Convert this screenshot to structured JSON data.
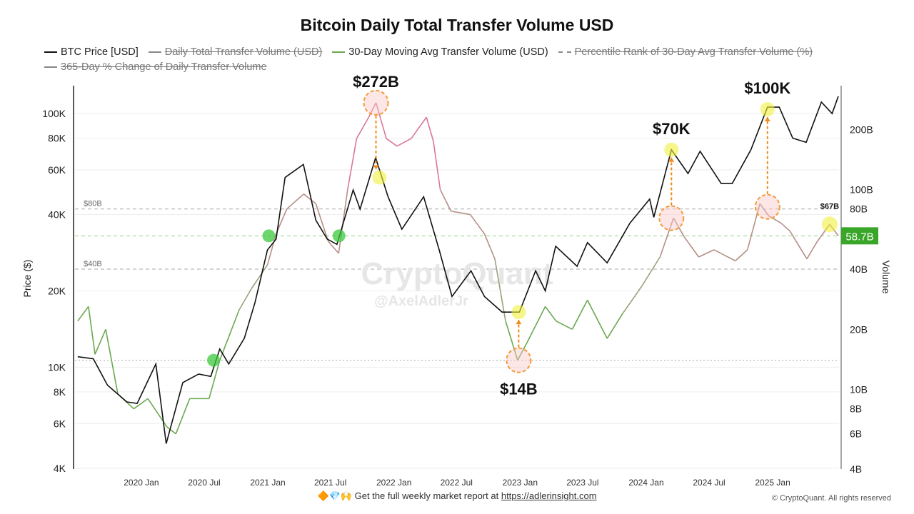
{
  "chart_data": {
    "type": "line",
    "title": "Bitcoin Daily Total Transfer Volume USD",
    "legend": [
      {
        "name": "BTC Price [USD]",
        "color": "#111111",
        "active": true
      },
      {
        "name": "Daily Total Transfer Volume (USD)",
        "color": "#888888",
        "active": false
      },
      {
        "name": "30-Day Moving Avg Transfer Volume (USD)",
        "color": "#6aa84f",
        "active": true
      },
      {
        "name": "Percentile Rank of 30-Day Avg Transfer Volume (%)",
        "color": "#888888",
        "active": false,
        "dashed": true
      },
      {
        "name": "365-Day % Change of Daily Transfer Volume",
        "color": "#888888",
        "active": false
      }
    ],
    "ylabel_left": "Price ($)",
    "ylabel_right": "Volume",
    "yscale": "log",
    "ylim_left": [
      3970,
      128800
    ],
    "ylim_right": [
      4,
      331
    ],
    "xlim": [
      "2019-06-23",
      "2025-07-12"
    ],
    "x_ticks": [
      "2020 Jan",
      "2020 Jul",
      "2021 Jan",
      "2021 Jul",
      "2022 Jan",
      "2022 Jul",
      "2023 Jan",
      "2023 Jul",
      "2024 Jan",
      "2024 Jul",
      "2025 Jan"
    ],
    "x_tick_dates": [
      "2020-01-01",
      "2020-07-01",
      "2021-01-01",
      "2021-07-01",
      "2022-01-01",
      "2022-07-01",
      "2023-01-01",
      "2023-07-01",
      "2024-01-01",
      "2024-07-01",
      "2025-01-01"
    ],
    "left_ticks": [
      {
        "v": 100000,
        "l": "100K"
      },
      {
        "v": 80000,
        "l": "80K"
      },
      {
        "v": 60000,
        "l": "60K"
      },
      {
        "v": 40000,
        "l": "40K"
      },
      {
        "v": 20000,
        "l": "20K"
      },
      {
        "v": 10000,
        "l": "10K"
      },
      {
        "v": 8000,
        "l": "8K"
      },
      {
        "v": 6000,
        "l": "6K"
      },
      {
        "v": 4000,
        "l": "4K"
      }
    ],
    "right_ticks": [
      {
        "v": 200,
        "l": "200B"
      },
      {
        "v": 100,
        "l": "100B"
      },
      {
        "v": 80,
        "l": "80B"
      },
      {
        "v": 40,
        "l": "40B"
      },
      {
        "v": 20,
        "l": "20B"
      },
      {
        "v": 10,
        "l": "10B"
      },
      {
        "v": 8,
        "l": "8B"
      },
      {
        "v": 6,
        "l": "6B"
      },
      {
        "v": 4,
        "l": "4B"
      }
    ],
    "ref_lines": [
      {
        "v": 80,
        "label": "$80B"
      },
      {
        "v": 40,
        "label": "$40B"
      },
      {
        "v": 14,
        "label": ""
      }
    ],
    "current_value": {
      "v": 58.7,
      "label": "58.7B",
      "color": "#3aa629"
    },
    "price": [
      [
        "2019-07-01",
        11000
      ],
      [
        "2019-08-15",
        10800
      ],
      [
        "2019-09-25",
        8500
      ],
      [
        "2019-11-20",
        7300
      ],
      [
        "2019-12-20",
        7200
      ],
      [
        "2020-02-12",
        10300
      ],
      [
        "2020-03-13",
        5000
      ],
      [
        "2020-04-30",
        8700
      ],
      [
        "2020-06-15",
        9400
      ],
      [
        "2020-07-20",
        9200
      ],
      [
        "2020-08-15",
        11800
      ],
      [
        "2020-09-10",
        10300
      ],
      [
        "2020-10-25",
        13000
      ],
      [
        "2020-11-25",
        18000
      ],
      [
        "2020-12-31",
        29000
      ],
      [
        "2021-01-25",
        32000
      ],
      [
        "2021-02-20",
        56000
      ],
      [
        "2021-04-14",
        63000
      ],
      [
        "2021-05-20",
        38000
      ],
      [
        "2021-06-22",
        32000
      ],
      [
        "2021-07-20",
        30500
      ],
      [
        "2021-09-05",
        50000
      ],
      [
        "2021-09-25",
        42000
      ],
      [
        "2021-11-09",
        67000
      ],
      [
        "2021-12-15",
        47000
      ],
      [
        "2022-01-24",
        35000
      ],
      [
        "2022-03-28",
        47000
      ],
      [
        "2022-05-12",
        29000
      ],
      [
        "2022-06-18",
        19000
      ],
      [
        "2022-08-12",
        24000
      ],
      [
        "2022-09-20",
        19000
      ],
      [
        "2022-11-10",
        16500
      ],
      [
        "2022-12-30",
        16500
      ],
      [
        "2023-02-15",
        24000
      ],
      [
        "2023-03-15",
        20000
      ],
      [
        "2023-04-14",
        30000
      ],
      [
        "2023-06-15",
        25000
      ],
      [
        "2023-07-15",
        31000
      ],
      [
        "2023-09-10",
        25800
      ],
      [
        "2023-11-15",
        37000
      ],
      [
        "2024-01-11",
        46000
      ],
      [
        "2024-01-23",
        39000
      ],
      [
        "2024-03-14",
        72000
      ],
      [
        "2024-05-01",
        58000
      ],
      [
        "2024-06-05",
        71000
      ],
      [
        "2024-08-05",
        53000
      ],
      [
        "2024-09-06",
        53000
      ],
      [
        "2024-10-30",
        72000
      ],
      [
        "2024-12-17",
        106000
      ],
      [
        "2025-01-20",
        106000
      ],
      [
        "2025-02-28",
        80000
      ],
      [
        "2025-04-08",
        77000
      ],
      [
        "2025-05-22",
        111000
      ],
      [
        "2025-06-22",
        100000
      ],
      [
        "2025-07-10",
        117000
      ]
    ],
    "volume_ma": [
      [
        "2019-07-01",
        22
      ],
      [
        "2019-08-01",
        26
      ],
      [
        "2019-08-20",
        15
      ],
      [
        "2019-09-20",
        20
      ],
      [
        "2019-10-25",
        9.5
      ],
      [
        "2019-12-10",
        8
      ],
      [
        "2020-01-20",
        9
      ],
      [
        "2020-03-15",
        6.5
      ],
      [
        "2020-04-10",
        6
      ],
      [
        "2020-05-20",
        9
      ],
      [
        "2020-07-15",
        9
      ],
      [
        "2020-08-15",
        14
      ],
      [
        "2020-10-10",
        25
      ],
      [
        "2020-11-15",
        32
      ],
      [
        "2020-12-31",
        42
      ],
      [
        "2021-01-25",
        60
      ],
      [
        "2021-02-25",
        80
      ],
      [
        "2021-04-15",
        95
      ],
      [
        "2021-05-20",
        85
      ],
      [
        "2021-06-25",
        55
      ],
      [
        "2021-07-25",
        48
      ],
      [
        "2021-08-20",
        100
      ],
      [
        "2021-09-15",
        180
      ],
      [
        "2021-10-20",
        230
      ],
      [
        "2021-11-10",
        272
      ],
      [
        "2021-12-10",
        180
      ],
      [
        "2022-01-10",
        165
      ],
      [
        "2022-02-20",
        180
      ],
      [
        "2022-04-05",
        230
      ],
      [
        "2022-04-25",
        175
      ],
      [
        "2022-05-15",
        100
      ],
      [
        "2022-06-15",
        78
      ],
      [
        "2022-08-10",
        75
      ],
      [
        "2022-09-20",
        60
      ],
      [
        "2022-10-20",
        45
      ],
      [
        "2022-11-20",
        22
      ],
      [
        "2022-12-25",
        14
      ],
      [
        "2023-01-20",
        17
      ],
      [
        "2023-03-15",
        26
      ],
      [
        "2023-04-15",
        22
      ],
      [
        "2023-06-01",
        20
      ],
      [
        "2023-07-15",
        28
      ],
      [
        "2023-09-10",
        18
      ],
      [
        "2023-10-25",
        24
      ],
      [
        "2023-12-20",
        33
      ],
      [
        "2024-02-10",
        46
      ],
      [
        "2024-03-20",
        72
      ],
      [
        "2024-04-20",
        58
      ],
      [
        "2024-06-01",
        46
      ],
      [
        "2024-07-15",
        50
      ],
      [
        "2024-09-15",
        44
      ],
      [
        "2024-10-20",
        50
      ],
      [
        "2024-11-25",
        85
      ],
      [
        "2024-12-20",
        74
      ],
      [
        "2025-01-25",
        68
      ],
      [
        "2025-02-20",
        62
      ],
      [
        "2025-04-10",
        45
      ],
      [
        "2025-05-10",
        55
      ],
      [
        "2025-06-15",
        67
      ],
      [
        "2025-07-10",
        58.7
      ]
    ],
    "annotations": [
      {
        "label": "$272B",
        "date": "2021-11-10",
        "axis": "right",
        "v": 272,
        "marker": "volume-peak"
      },
      {
        "label": "",
        "date": "2021-11-20",
        "axis": "left",
        "v": 56000,
        "marker": "price-point"
      },
      {
        "label": "$70K",
        "date": "2024-03-14",
        "axis": "left",
        "v": 72000,
        "marker": "price-peak"
      },
      {
        "label": "",
        "date": "2024-03-14",
        "axis": "right",
        "v": 72,
        "marker": "volume-point"
      },
      {
        "label": "$100K",
        "date": "2024-12-17",
        "axis": "left",
        "v": 104000,
        "marker": "price-peak"
      },
      {
        "label": "",
        "date": "2024-12-17",
        "axis": "right",
        "v": 82,
        "marker": "volume-point"
      },
      {
        "label": "$14B",
        "date": "2022-12-28",
        "axis": "right",
        "v": 14,
        "marker": "volume-low"
      },
      {
        "label": "",
        "date": "2022-12-28",
        "axis": "left",
        "v": 16500,
        "marker": "price-point"
      },
      {
        "label": "$67B",
        "date": "2025-06-15",
        "axis": "right",
        "v": 67,
        "marker": "volume-local-peak"
      }
    ],
    "cross_points": [
      {
        "date": "2020-07-28",
        "axis": "right",
        "v": 14
      },
      {
        "date": "2021-01-04",
        "axis": "right",
        "v": 58.7
      },
      {
        "date": "2021-07-26",
        "axis": "right",
        "v": 58.7
      }
    ],
    "watermark": "CryptoQuant",
    "watermark_handle": "@AxelAdlerJr"
  },
  "footer": {
    "emoji": "🔶💎🙌",
    "text": "Get the full weekly market report at ",
    "link": "https://adlerinsight.com"
  },
  "copyright": "© CryptoQuant. All rights reserved"
}
